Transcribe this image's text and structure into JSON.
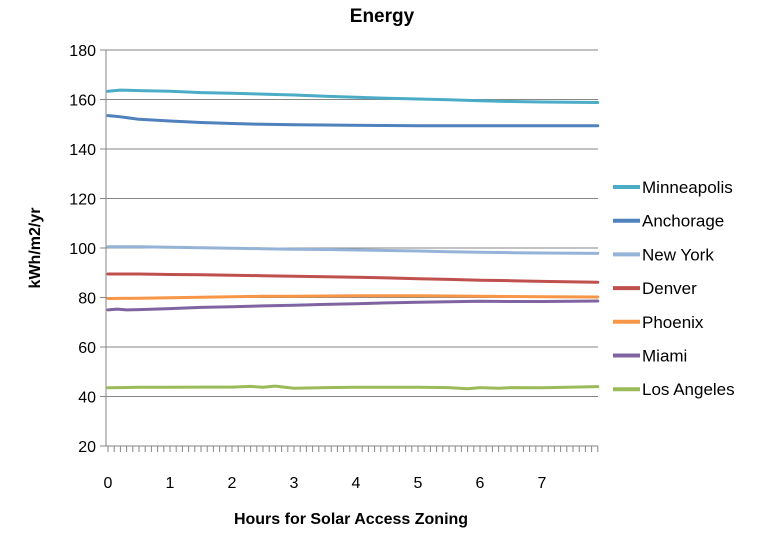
{
  "chart_data": {
    "type": "line",
    "title": "Energy",
    "xlabel": "Hours for Solar Access Zoning",
    "ylabel": "kWh/m2/yr",
    "xlim": [
      0,
      7.9
    ],
    "ylim": [
      20,
      180
    ],
    "yticks": [
      20,
      40,
      60,
      80,
      100,
      120,
      140,
      160,
      180
    ],
    "xticks": [
      0,
      1,
      2,
      3,
      4,
      5,
      6,
      7
    ],
    "grid": "horizontal",
    "legend_position": "right",
    "series": [
      {
        "name": "Minneapolis",
        "color": "#4BACC6",
        "points": [
          [
            0,
            163.3
          ],
          [
            0.2,
            163.8
          ],
          [
            0.5,
            163.6
          ],
          [
            1,
            163.3
          ],
          [
            1.5,
            162.8
          ],
          [
            2,
            162.5
          ],
          [
            2.5,
            162.2
          ],
          [
            3,
            161.8
          ],
          [
            3.5,
            161.3
          ],
          [
            4,
            160.9
          ],
          [
            4.5,
            160.5
          ],
          [
            5,
            160.2
          ],
          [
            5.5,
            159.9
          ],
          [
            6,
            159.5
          ],
          [
            6.5,
            159.2
          ],
          [
            7,
            159.0
          ],
          [
            7.9,
            158.8
          ]
        ]
      },
      {
        "name": "Anchorage",
        "color": "#4F81BD",
        "points": [
          [
            0,
            153.5
          ],
          [
            0.2,
            153.0
          ],
          [
            0.5,
            152.0
          ],
          [
            1,
            151.3
          ],
          [
            1.5,
            150.7
          ],
          [
            2,
            150.3
          ],
          [
            2.5,
            150.0
          ],
          [
            3,
            149.8
          ],
          [
            3.5,
            149.7
          ],
          [
            3.9,
            149.6
          ],
          [
            4.5,
            149.5
          ],
          [
            5,
            149.4
          ],
          [
            6,
            149.4
          ],
          [
            7,
            149.4
          ],
          [
            7.9,
            149.4
          ]
        ]
      },
      {
        "name": "New York",
        "color": "#95B3D7",
        "points": [
          [
            0,
            100.5
          ],
          [
            0.5,
            100.5
          ],
          [
            1,
            100.3
          ],
          [
            1.5,
            100.1
          ],
          [
            2,
            99.9
          ],
          [
            2.5,
            99.7
          ],
          [
            3,
            99.5
          ],
          [
            3.5,
            99.4
          ],
          [
            4,
            99.2
          ],
          [
            4.5,
            99.0
          ],
          [
            5,
            98.8
          ],
          [
            5.5,
            98.5
          ],
          [
            6,
            98.3
          ],
          [
            6.5,
            98.1
          ],
          [
            7,
            98.0
          ],
          [
            7.9,
            97.8
          ]
        ]
      },
      {
        "name": "Denver",
        "color": "#C0504D",
        "points": [
          [
            0,
            89.5
          ],
          [
            0.5,
            89.5
          ],
          [
            1,
            89.3
          ],
          [
            1.5,
            89.2
          ],
          [
            2,
            89.0
          ],
          [
            2.5,
            88.8
          ],
          [
            3,
            88.6
          ],
          [
            3.5,
            88.4
          ],
          [
            4,
            88.2
          ],
          [
            4.5,
            87.9
          ],
          [
            5,
            87.6
          ],
          [
            5.5,
            87.3
          ],
          [
            6,
            87.0
          ],
          [
            6.5,
            86.8
          ],
          [
            7,
            86.5
          ],
          [
            7.9,
            86.2
          ]
        ]
      },
      {
        "name": "Phoenix",
        "color": "#F79646",
        "points": [
          [
            0,
            79.6
          ],
          [
            0.5,
            79.7
          ],
          [
            1,
            79.9
          ],
          [
            1.5,
            80.1
          ],
          [
            2,
            80.3
          ],
          [
            2.5,
            80.5
          ],
          [
            3,
            80.5
          ],
          [
            3.5,
            80.6
          ],
          [
            4,
            80.7
          ],
          [
            4.5,
            80.7
          ],
          [
            5,
            80.7
          ],
          [
            5.5,
            80.6
          ],
          [
            6,
            80.5
          ],
          [
            6.5,
            80.4
          ],
          [
            7,
            80.3
          ],
          [
            7.9,
            80.2
          ]
        ]
      },
      {
        "name": "Miami",
        "color": "#8064A2",
        "points": [
          [
            0,
            75.0
          ],
          [
            0.15,
            75.3
          ],
          [
            0.3,
            75.0
          ],
          [
            0.5,
            75.1
          ],
          [
            1,
            75.5
          ],
          [
            1.5,
            76.0
          ],
          [
            2,
            76.3
          ],
          [
            2.5,
            76.6
          ],
          [
            3,
            76.9
          ],
          [
            3.5,
            77.2
          ],
          [
            4,
            77.5
          ],
          [
            4.5,
            77.8
          ],
          [
            5,
            78.1
          ],
          [
            5.5,
            78.3
          ],
          [
            6,
            78.5
          ],
          [
            6.5,
            78.4
          ],
          [
            7,
            78.4
          ],
          [
            7.5,
            78.5
          ],
          [
            7.9,
            78.6
          ]
        ]
      },
      {
        "name": "Los Angeles",
        "color": "#9BBB59",
        "points": [
          [
            0,
            43.5
          ],
          [
            0.5,
            43.7
          ],
          [
            1,
            43.7
          ],
          [
            1.5,
            43.8
          ],
          [
            2,
            43.8
          ],
          [
            2.3,
            44.1
          ],
          [
            2.5,
            43.7
          ],
          [
            2.7,
            44.2
          ],
          [
            3,
            43.3
          ],
          [
            3.5,
            43.6
          ],
          [
            4,
            43.7
          ],
          [
            4.5,
            43.7
          ],
          [
            5,
            43.7
          ],
          [
            5.5,
            43.6
          ],
          [
            5.8,
            43.1
          ],
          [
            6,
            43.6
          ],
          [
            6.3,
            43.3
          ],
          [
            6.5,
            43.6
          ],
          [
            7,
            43.5
          ],
          [
            7.5,
            43.8
          ],
          [
            7.9,
            44.0
          ]
        ]
      }
    ]
  }
}
